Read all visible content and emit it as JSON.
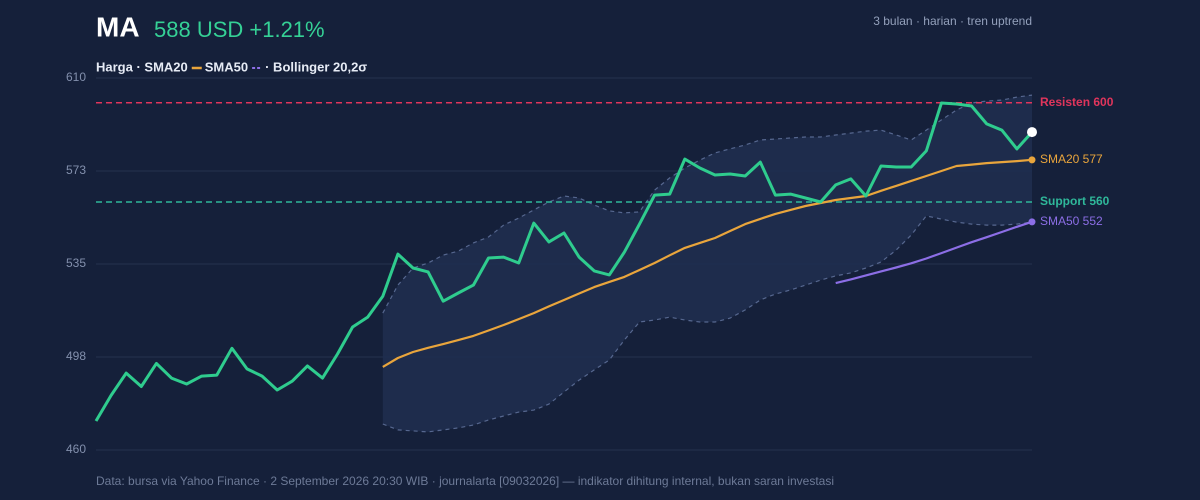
{
  "chart_data": {
    "type": "line",
    "title": "MA",
    "subtitle": "588 USD +1.21%",
    "note": "3 bulan · harian · tren uptrend",
    "legend": [
      "Harga · SMA20",
      "SMA50",
      "· Bollinger 20,2σ"
    ],
    "source": "Data: bursa via Yahoo Finance · 2 September 2026 20:30 WIB · journalarta [09032026] — indikator dihitung internal, bukan saran investasi",
    "ylim": [
      460,
      610
    ],
    "yticks": [
      460,
      {
        "value": 497.5,
        "label": "498"
      },
      535,
      {
        "value": 572.5,
        "label": "573"
      },
      610
    ],
    "grid": true,
    "hlines": [
      {
        "value": 600,
        "label": "Resisten 600",
        "color": "#e0355c"
      },
      {
        "value": 560,
        "label": "Support 560",
        "color": "#2fb89a"
      }
    ],
    "band": {
      "color": "#56678f",
      "upper": [
        null,
        null,
        null,
        null,
        null,
        null,
        null,
        null,
        null,
        null,
        null,
        null,
        null,
        null,
        null,
        null,
        null,
        null,
        null,
        515.2,
        526.5,
        533.4,
        535.4,
        538.6,
        540.2,
        543.5,
        545.9,
        550.7,
        553.5,
        556.8,
        560,
        562.4,
        561.6,
        558.8,
        556.4,
        555.6,
        556,
        564.8,
        569.7,
        573.7,
        576.9,
        579.8,
        581.4,
        583,
        585,
        585.4,
        585.8,
        586.2,
        586.2,
        587,
        587.8,
        588.6,
        589,
        587,
        585,
        589,
        593.1,
        597.1,
        599.9,
        600.7,
        601.1,
        602.3,
        603.1
      ],
      "lower": [
        null,
        null,
        null,
        null,
        null,
        null,
        null,
        null,
        null,
        null,
        null,
        null,
        null,
        null,
        null,
        null,
        null,
        null,
        null,
        470.5,
        468.1,
        467.7,
        467.3,
        468.1,
        468.9,
        470.1,
        472.1,
        473.7,
        475.3,
        476.1,
        478.5,
        483.4,
        488.2,
        492.3,
        496.3,
        504.4,
        511.6,
        512.4,
        513.6,
        512.4,
        511.6,
        511.6,
        513.2,
        516.5,
        520.5,
        522.9,
        524.5,
        526.5,
        528.5,
        530.2,
        531.4,
        533.4,
        535.8,
        540.6,
        546.7,
        554.4,
        553.1,
        551.9,
        551.1,
        550.7,
        550.7,
        551.1,
        551.9
      ]
    },
    "series": [
      {
        "color": "#2fcc8e",
        "end_color": "#ffffff",
        "values": [
          471.7,
          482,
          491,
          485.6,
          494.9,
          489,
          486.6,
          489.8,
          490.2,
          501,
          492.7,
          489.8,
          484.2,
          487.8,
          493.9,
          489,
          498.7,
          509.6,
          513.6,
          522,
          539,
          533.4,
          531.8,
          520,
          523.3,
          526.5,
          537.4,
          537.8,
          535.4,
          551.5,
          543.9,
          547.5,
          537.8,
          532.2,
          530.6,
          539.8,
          551.1,
          562.8,
          563.2,
          577.3,
          573.7,
          570.9,
          571.3,
          570.5,
          576.1,
          562.8,
          563.2,
          561.6,
          560,
          566.9,
          569.3,
          562.4,
          574.5,
          574.1,
          574.1,
          580.6,
          599.9,
          599.5,
          598.7,
          591.5,
          589,
          581.4,
          588.2
        ]
      },
      {
        "color": "#e9a53c",
        "end_label": "SMA20 577",
        "values": [
          null,
          null,
          null,
          null,
          null,
          null,
          null,
          null,
          null,
          null,
          null,
          null,
          null,
          null,
          null,
          null,
          null,
          null,
          null,
          493.5,
          497.1,
          499.5,
          501.2,
          502.7,
          504.3,
          506,
          508.2,
          510.4,
          512.8,
          515.2,
          517.9,
          520.5,
          523.1,
          525.7,
          527.8,
          529.8,
          532.6,
          535.4,
          538.5,
          541.5,
          543.5,
          545.5,
          548.3,
          551.1,
          553.2,
          555.2,
          556.8,
          558.4,
          559.6,
          560.8,
          561.6,
          562.4,
          564.5,
          566.5,
          568.5,
          570.5,
          572.5,
          574.5,
          575.1,
          575.7,
          576.1,
          576.5,
          577
        ]
      },
      {
        "color": "#8c6ee6",
        "end_label": "SMA50 552",
        "values": [
          null,
          null,
          null,
          null,
          null,
          null,
          null,
          null,
          null,
          null,
          null,
          null,
          null,
          null,
          null,
          null,
          null,
          null,
          null,
          null,
          null,
          null,
          null,
          null,
          null,
          null,
          null,
          null,
          null,
          null,
          null,
          null,
          null,
          null,
          null,
          null,
          null,
          null,
          null,
          null,
          null,
          null,
          null,
          null,
          null,
          null,
          null,
          null,
          null,
          527.3,
          528.8,
          530.4,
          532,
          533.6,
          535.3,
          537.2,
          539.4,
          541.6,
          543.8,
          545.8,
          547.9,
          550,
          552
        ]
      }
    ]
  }
}
